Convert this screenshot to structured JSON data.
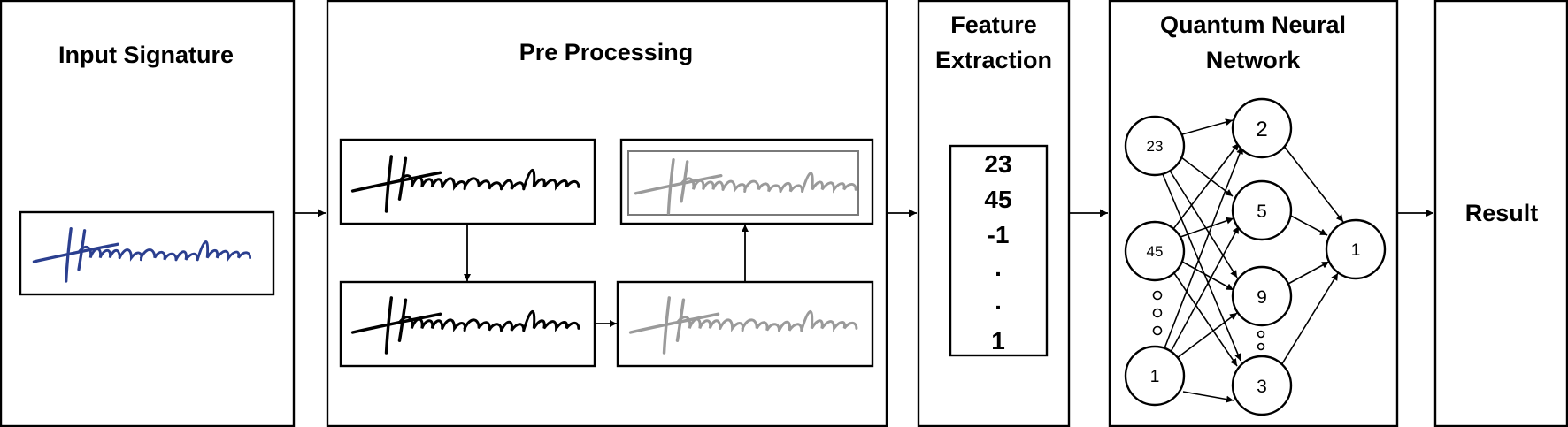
{
  "panels": {
    "input": {
      "title": "Input Signature"
    },
    "pre": {
      "title": "Pre Processing"
    },
    "feature": {
      "title_line1": "Feature",
      "title_line2": "Extraction",
      "values": [
        "23",
        "45",
        "-1",
        ".",
        ".",
        "1"
      ]
    },
    "qnn": {
      "title_line1": "Quantum Neural",
      "title_line2": "Network"
    },
    "result": {
      "title": "Result"
    }
  },
  "network": {
    "input_nodes": [
      "23",
      "45",
      "1"
    ],
    "hidden_nodes": [
      "2",
      "5",
      "9",
      "3"
    ],
    "output_nodes": [
      "1"
    ]
  },
  "colors": {
    "ink": "#000000",
    "signature_blue": "#2b3f8f",
    "signature_gray": "#9a9a9a",
    "background": "#ffffff"
  }
}
